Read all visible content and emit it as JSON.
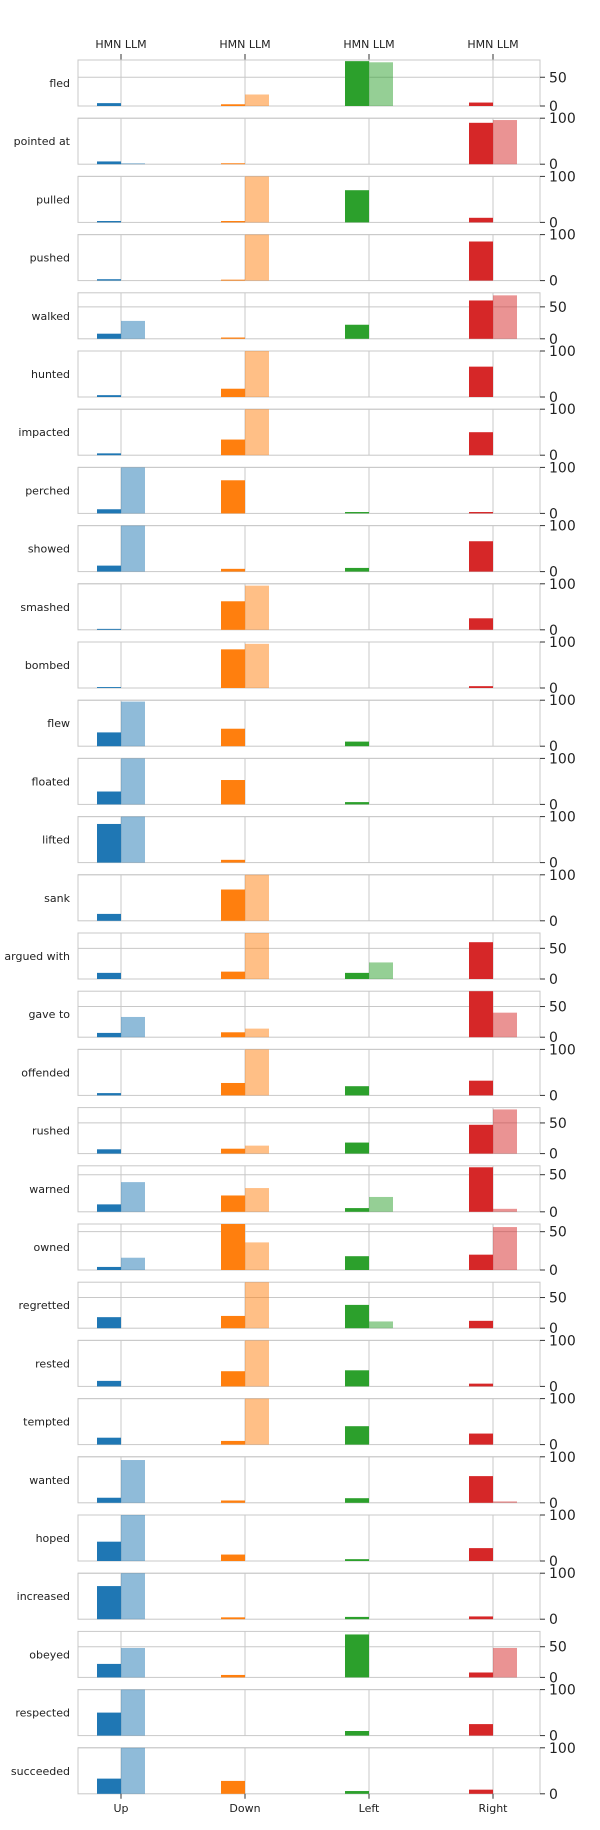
{
  "chart_data": {
    "type": "bar",
    "directions": [
      "Up",
      "Down",
      "Left",
      "Right"
    ],
    "top_labels": [
      "HMN LLM",
      "HMN LLM",
      "HMN LLM",
      "HMN LLM"
    ],
    "series": [
      {
        "name": "HMN"
      },
      {
        "name": "LLM"
      }
    ],
    "colors": {
      "Up": "#1f77b4",
      "Down": "#ff7f0e",
      "Left": "#2ca02c",
      "Right": "#d62728"
    },
    "llm_opacity": 0.5,
    "grid": true,
    "verbs": [
      {
        "label": "fled",
        "ylim": [
          0,
          80
        ],
        "yticks": [
          0,
          50
        ],
        "hmn": [
          5,
          3,
          78,
          6
        ],
        "llm": [
          0,
          20,
          76,
          0
        ]
      },
      {
        "label": "pointed at",
        "ylim": [
          0,
          100
        ],
        "yticks": [
          0,
          100
        ],
        "hmn": [
          6,
          2,
          0,
          90
        ],
        "llm": [
          2,
          0,
          0,
          96
        ]
      },
      {
        "label": "pulled",
        "ylim": [
          0,
          100
        ],
        "yticks": [
          0,
          100
        ],
        "hmn": [
          3,
          3,
          70,
          10
        ],
        "llm": [
          0,
          100,
          0,
          0
        ]
      },
      {
        "label": "pushed",
        "ylim": [
          0,
          100
        ],
        "yticks": [
          0,
          100
        ],
        "hmn": [
          3,
          2,
          0,
          85
        ],
        "llm": [
          0,
          100,
          0,
          0
        ]
      },
      {
        "label": "walked",
        "ylim": [
          0,
          72
        ],
        "yticks": [
          0,
          50
        ],
        "hmn": [
          8,
          2,
          22,
          60
        ],
        "llm": [
          28,
          0,
          0,
          68
        ]
      },
      {
        "label": "hunted",
        "ylim": [
          0,
          100
        ],
        "yticks": [
          0,
          100
        ],
        "hmn": [
          4,
          18,
          0,
          66
        ],
        "llm": [
          0,
          100,
          0,
          0
        ]
      },
      {
        "label": "impacted",
        "ylim": [
          0,
          100
        ],
        "yticks": [
          0,
          100
        ],
        "hmn": [
          4,
          34,
          0,
          50
        ],
        "llm": [
          0,
          100,
          0,
          0
        ]
      },
      {
        "label": "perched",
        "ylim": [
          0,
          100
        ],
        "yticks": [
          0,
          100
        ],
        "hmn": [
          9,
          72,
          3,
          3
        ],
        "llm": [
          100,
          0,
          0,
          0
        ]
      },
      {
        "label": "showed",
        "ylim": [
          0,
          100
        ],
        "yticks": [
          0,
          100
        ],
        "hmn": [
          13,
          6,
          8,
          66
        ],
        "llm": [
          100,
          0,
          0,
          0
        ]
      },
      {
        "label": "smashed",
        "ylim": [
          0,
          100
        ],
        "yticks": [
          0,
          100
        ],
        "hmn": [
          2,
          62,
          0,
          25
        ],
        "llm": [
          0,
          96,
          0,
          0
        ]
      },
      {
        "label": "bombed",
        "ylim": [
          0,
          100
        ],
        "yticks": [
          0,
          100
        ],
        "hmn": [
          2,
          84,
          0,
          4
        ],
        "llm": [
          0,
          96,
          0,
          0
        ]
      },
      {
        "label": "flew",
        "ylim": [
          0,
          100
        ],
        "yticks": [
          0,
          100
        ],
        "hmn": [
          30,
          38,
          10,
          0
        ],
        "llm": [
          97,
          0,
          0,
          0
        ]
      },
      {
        "label": "floated",
        "ylim": [
          0,
          100
        ],
        "yticks": [
          0,
          100
        ],
        "hmn": [
          28,
          53,
          5,
          0
        ],
        "llm": [
          100,
          0,
          0,
          0
        ]
      },
      {
        "label": "lifted",
        "ylim": [
          0,
          100
        ],
        "yticks": [
          0,
          100
        ],
        "hmn": [
          84,
          6,
          0,
          0
        ],
        "llm": [
          100,
          0,
          0,
          0
        ]
      },
      {
        "label": "sank",
        "ylim": [
          0,
          100
        ],
        "yticks": [
          0,
          100
        ],
        "hmn": [
          15,
          68,
          0,
          0
        ],
        "llm": [
          0,
          100,
          0,
          0
        ]
      },
      {
        "label": "argued with",
        "ylim": [
          0,
          75
        ],
        "yticks": [
          0,
          50
        ],
        "hmn": [
          10,
          12,
          10,
          60
        ],
        "llm": [
          0,
          75,
          27,
          0
        ]
      },
      {
        "label": "gave to",
        "ylim": [
          0,
          75
        ],
        "yticks": [
          0,
          50
        ],
        "hmn": [
          7,
          8,
          0,
          75
        ],
        "llm": [
          33,
          14,
          0,
          40
        ]
      },
      {
        "label": "offended",
        "ylim": [
          0,
          100
        ],
        "yticks": [
          0,
          100
        ],
        "hmn": [
          5,
          27,
          20,
          32
        ],
        "llm": [
          0,
          100,
          0,
          0
        ]
      },
      {
        "label": "rushed",
        "ylim": [
          0,
          75
        ],
        "yticks": [
          0,
          50
        ],
        "hmn": [
          7,
          8,
          18,
          47
        ],
        "llm": [
          0,
          13,
          0,
          72
        ]
      },
      {
        "label": "warned",
        "ylim": [
          0,
          62
        ],
        "yticks": [
          0,
          50
        ],
        "hmn": [
          10,
          22,
          5,
          60
        ],
        "llm": [
          40,
          32,
          20,
          4
        ]
      },
      {
        "label": "owned",
        "ylim": [
          0,
          60
        ],
        "yticks": [
          0,
          50
        ],
        "hmn": [
          4,
          60,
          18,
          20
        ],
        "llm": [
          16,
          36,
          0,
          56
        ]
      },
      {
        "label": "regretted",
        "ylim": [
          0,
          75
        ],
        "yticks": [
          0,
          50
        ],
        "hmn": [
          18,
          20,
          38,
          12
        ],
        "llm": [
          0,
          75,
          11,
          0
        ]
      },
      {
        "label": "rested",
        "ylim": [
          0,
          100
        ],
        "yticks": [
          0,
          100
        ],
        "hmn": [
          12,
          33,
          35,
          6
        ],
        "llm": [
          0,
          100,
          0,
          0
        ]
      },
      {
        "label": "tempted",
        "ylim": [
          0,
          100
        ],
        "yticks": [
          0,
          100
        ],
        "hmn": [
          15,
          8,
          40,
          24
        ],
        "llm": [
          0,
          100,
          0,
          0
        ]
      },
      {
        "label": "wanted",
        "ylim": [
          0,
          100
        ],
        "yticks": [
          0,
          100
        ],
        "hmn": [
          11,
          5,
          10,
          58
        ],
        "llm": [
          93,
          0,
          0,
          3
        ]
      },
      {
        "label": "hoped",
        "ylim": [
          0,
          100
        ],
        "yticks": [
          0,
          100
        ],
        "hmn": [
          42,
          14,
          4,
          28
        ],
        "llm": [
          100,
          0,
          0,
          0
        ]
      },
      {
        "label": "increased",
        "ylim": [
          0,
          100
        ],
        "yticks": [
          0,
          100
        ],
        "hmn": [
          72,
          4,
          5,
          6
        ],
        "llm": [
          100,
          0,
          0,
          0
        ]
      },
      {
        "label": "obeyed",
        "ylim": [
          0,
          75
        ],
        "yticks": [
          0,
          50
        ],
        "hmn": [
          22,
          4,
          70,
          8
        ],
        "llm": [
          48,
          0,
          0,
          48
        ]
      },
      {
        "label": "respected",
        "ylim": [
          0,
          100
        ],
        "yticks": [
          0,
          100
        ],
        "hmn": [
          50,
          0,
          10,
          25
        ],
        "llm": [
          100,
          0,
          0,
          0
        ]
      },
      {
        "label": "succeeded",
        "ylim": [
          0,
          100
        ],
        "yticks": [
          0,
          100
        ],
        "hmn": [
          33,
          28,
          6,
          9
        ],
        "llm": [
          100,
          0,
          0,
          0
        ]
      }
    ]
  }
}
